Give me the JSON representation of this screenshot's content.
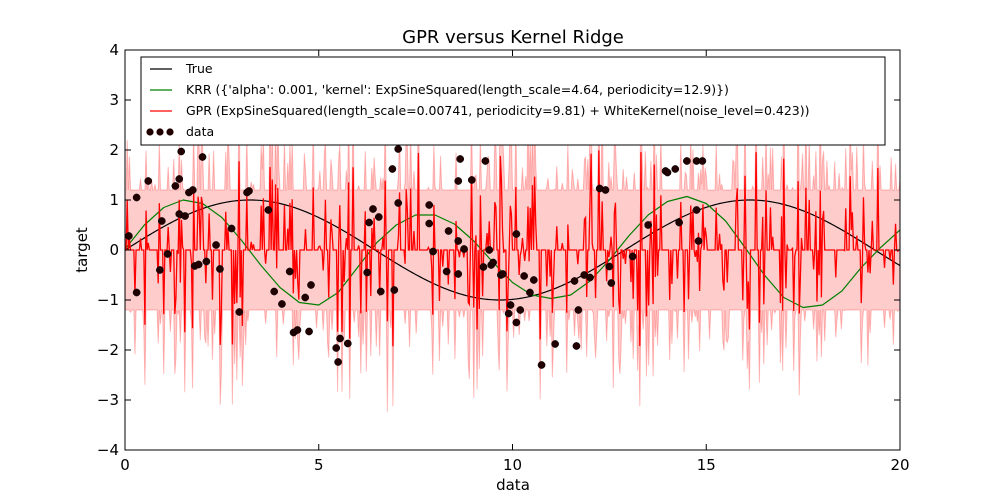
{
  "chart_data": {
    "type": "line",
    "title": "GPR versus Kernel Ridge",
    "xlabel": "data",
    "ylabel": "target",
    "xlim": [
      0,
      20
    ],
    "ylim": [
      -4,
      4
    ],
    "xticks": [
      0,
      5,
      10,
      15,
      20
    ],
    "yticks": [
      -4,
      -3,
      -2,
      -1,
      0,
      1,
      2,
      3,
      4
    ],
    "grid": false,
    "legend_position": "top",
    "series": [
      {
        "name": "True",
        "kind": "line",
        "color": "#000000",
        "function": {
          "form": "sin",
          "amplitude": 1.0,
          "period": 12.9,
          "phase": 0
        }
      },
      {
        "name": "KRR ({'alpha': 0.001, 'kernel': ExpSineSquared(length_scale=4.64, periodicity=12.9)})",
        "kind": "line",
        "color": "#008000",
        "x": [
          0,
          0.5,
          1,
          1.5,
          2,
          2.5,
          3,
          3.5,
          4,
          4.5,
          5,
          5.5,
          6,
          6.5,
          7,
          7.5,
          8,
          8.5,
          9,
          9.5,
          10,
          10.5,
          11,
          11.5,
          12,
          12.5,
          13,
          13.5,
          14,
          14.5,
          15,
          15.5,
          16,
          16.5,
          17,
          17.5,
          18,
          18.5,
          19,
          19.5,
          20
        ],
        "y": [
          0.02,
          0.5,
          0.85,
          1.0,
          0.93,
          0.65,
          0.2,
          -0.3,
          -0.75,
          -1.05,
          -1.1,
          -0.85,
          -0.35,
          0.15,
          0.5,
          0.7,
          0.7,
          0.52,
          0.18,
          -0.25,
          -0.65,
          -0.9,
          -0.97,
          -0.9,
          -0.62,
          -0.2,
          0.28,
          0.7,
          0.97,
          1.07,
          0.93,
          0.58,
          0.05,
          -0.5,
          -0.95,
          -1.15,
          -1.1,
          -0.82,
          -0.35,
          0.05,
          0.4
        ]
      },
      {
        "name": "GPR (ExpSineSquared(length_scale=0.00741, periodicity=9.81) + WhiteKernel(noise_level=0.423))",
        "kind": "line",
        "color": "#ff0000",
        "description_values": {
          "mean_baseline": 0,
          "band": [
            -1.2,
            1.2
          ]
        }
      },
      {
        "name": "data",
        "kind": "scatter",
        "color": "#200000",
        "points": [
          [
            0.1,
            0.28
          ],
          [
            0.3,
            1.05
          ],
          [
            0.3,
            -0.85
          ],
          [
            0.6,
            1.38
          ],
          [
            0.9,
            -0.4
          ],
          [
            0.95,
            0.58
          ],
          [
            1.1,
            -0.08
          ],
          [
            1.3,
            1.28
          ],
          [
            1.4,
            0.72
          ],
          [
            1.4,
            1.42
          ],
          [
            1.45,
            1.97
          ],
          [
            1.55,
            0.68
          ],
          [
            1.65,
            1.15
          ],
          [
            1.75,
            1.2
          ],
          [
            1.8,
            -0.32
          ],
          [
            1.9,
            -0.29
          ],
          [
            2.0,
            1.86
          ],
          [
            2.1,
            -0.23
          ],
          [
            2.35,
            0.1
          ],
          [
            2.45,
            -0.38
          ],
          [
            2.75,
            0.43
          ],
          [
            2.95,
            -1.24
          ],
          [
            3.15,
            1.15
          ],
          [
            3.2,
            1.18
          ],
          [
            3.7,
            0.8
          ],
          [
            3.85,
            -0.83
          ],
          [
            4.05,
            -1.08
          ],
          [
            4.25,
            -0.43
          ],
          [
            4.35,
            -1.65
          ],
          [
            4.45,
            -1.6
          ],
          [
            4.65,
            -0.95
          ],
          [
            4.75,
            -1.63
          ],
          [
            4.8,
            -0.7
          ],
          [
            5.45,
            -1.96
          ],
          [
            5.5,
            -2.24
          ],
          [
            5.55,
            -1.77
          ],
          [
            5.75,
            -1.87
          ],
          [
            6.25,
            -0.45
          ],
          [
            6.3,
            0.55
          ],
          [
            6.4,
            0.82
          ],
          [
            6.55,
            0.66
          ],
          [
            6.6,
            -0.83
          ],
          [
            6.9,
            1.62
          ],
          [
            6.95,
            -0.8
          ],
          [
            7.05,
            0.94
          ],
          [
            7.05,
            2.02
          ],
          [
            7.85,
            0.9
          ],
          [
            7.85,
            0.53
          ],
          [
            7.95,
            -0.03
          ],
          [
            8.3,
            -0.43
          ],
          [
            8.35,
            0.38
          ],
          [
            8.6,
            -0.48
          ],
          [
            8.6,
            0.18
          ],
          [
            8.6,
            1.38
          ],
          [
            8.65,
            1.82
          ],
          [
            8.75,
            0.02
          ],
          [
            8.95,
            1.4
          ],
          [
            9.25,
            -0.34
          ],
          [
            9.3,
            1.78
          ],
          [
            9.4,
            0.0
          ],
          [
            9.45,
            -0.3
          ],
          [
            9.5,
            -0.25
          ],
          [
            9.7,
            -0.5
          ],
          [
            9.75,
            -0.48
          ],
          [
            9.9,
            -1.27
          ],
          [
            9.95,
            -1.1
          ],
          [
            10.1,
            -1.45
          ],
          [
            10.1,
            0.32
          ],
          [
            10.2,
            -1.2
          ],
          [
            10.3,
            -0.52
          ],
          [
            10.45,
            -0.85
          ],
          [
            10.55,
            -0.6
          ],
          [
            10.75,
            -2.3
          ],
          [
            11.1,
            -1.88
          ],
          [
            11.6,
            -0.62
          ],
          [
            11.65,
            -1.92
          ],
          [
            11.7,
            -1.2
          ],
          [
            11.85,
            -0.5
          ],
          [
            12.0,
            -0.55
          ],
          [
            12.25,
            1.23
          ],
          [
            12.4,
            1.2
          ],
          [
            12.5,
            -0.33
          ],
          [
            12.55,
            -0.66
          ],
          [
            13.1,
            -0.13
          ],
          [
            13.5,
            0.5
          ],
          [
            13.95,
            1.58
          ],
          [
            14.0,
            1.55
          ],
          [
            14.2,
            1.62
          ],
          [
            14.3,
            0.55
          ],
          [
            14.5,
            1.78
          ],
          [
            14.75,
            1.78
          ],
          [
            14.75,
            0.8
          ],
          [
            14.8,
            0.18
          ],
          [
            14.9,
            1.78
          ]
        ]
      }
    ]
  }
}
